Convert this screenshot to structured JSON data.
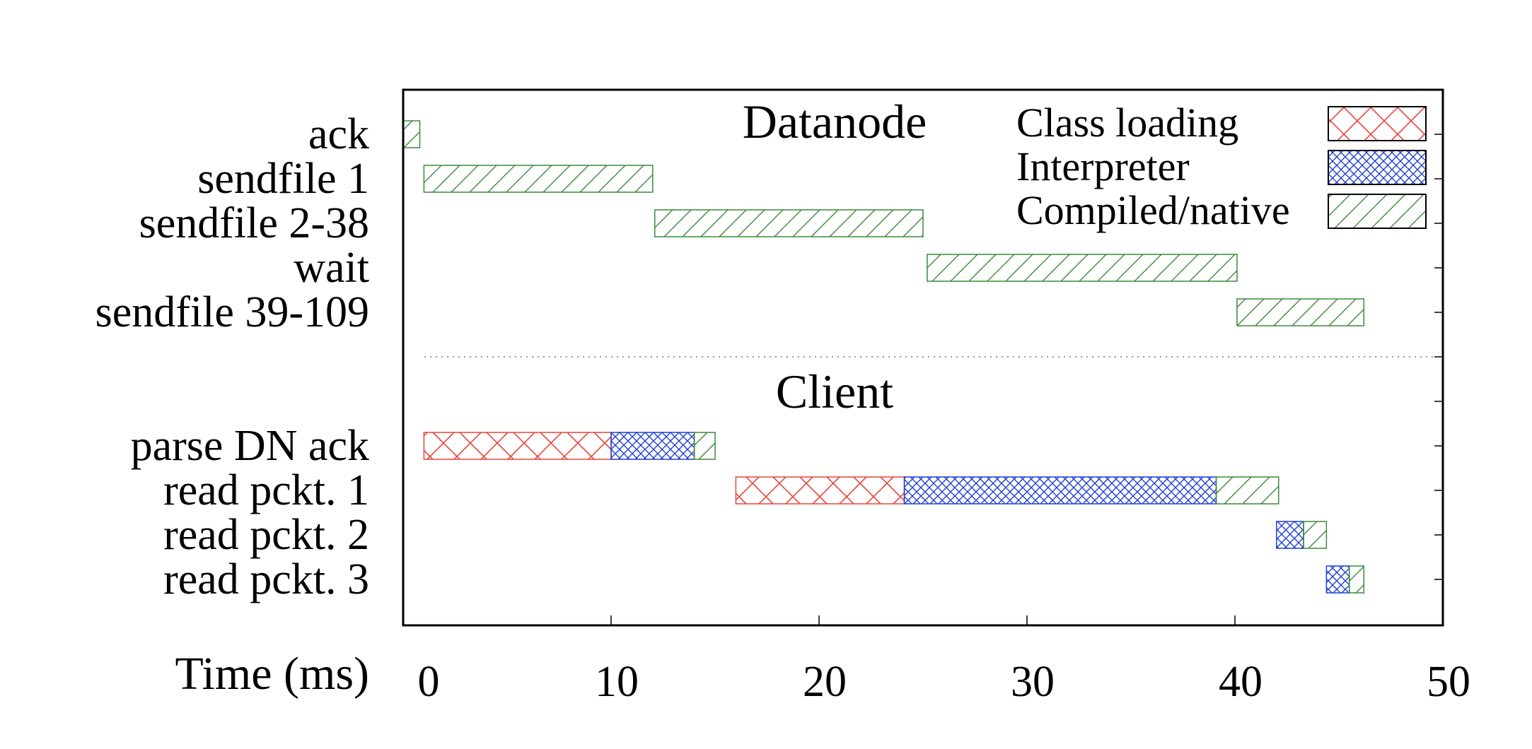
{
  "chart_data": {
    "type": "bar",
    "subtype": "gantt-timeline",
    "title": "",
    "xlabel": "Time (ms)",
    "ylabel": "",
    "xlim": [
      0,
      50
    ],
    "x_ticks": [
      0,
      10,
      20,
      30,
      40,
      50
    ],
    "grid": false,
    "legend_placement": "top-right (inside)",
    "sections": [
      {
        "label": "Datanode",
        "rows": [
          "ack",
          "sendfile 1",
          "sendfile 2-38",
          "wait",
          "sendfile 39-109"
        ]
      },
      {
        "label": "Client",
        "rows": [
          "parse DN ack",
          "read pckt. 1",
          "read pckt. 2",
          "read pckt. 3"
        ]
      }
    ],
    "rows": [
      "ack",
      "sendfile 1",
      "sendfile 2-38",
      "wait",
      "sendfile 39-109",
      "",
      "",
      "parse DN ack",
      "read pckt. 1",
      "read pckt. 2",
      "read pckt. 3"
    ],
    "series": [
      {
        "name": "Class loading",
        "color": "#e8453c",
        "pattern": "cross-hatch-sparse"
      },
      {
        "name": "Interpreter",
        "color": "#1f3fd6",
        "pattern": "cross-hatch-dense"
      },
      {
        "name": "Compiled/native",
        "color": "#3a8a3a",
        "pattern": "diagonal"
      }
    ],
    "segments": [
      {
        "row": "ack",
        "series": "Compiled/native",
        "start": -0.3,
        "end": 0.8
      },
      {
        "row": "sendfile 1",
        "series": "Compiled/native",
        "start": 1.0,
        "end": 12.0
      },
      {
        "row": "sendfile 2-38",
        "series": "Compiled/native",
        "start": 12.1,
        "end": 25.0
      },
      {
        "row": "wait",
        "series": "Compiled/native",
        "start": 25.2,
        "end": 40.1
      },
      {
        "row": "sendfile 39-109",
        "series": "Compiled/native",
        "start": 40.1,
        "end": 46.2
      },
      {
        "row": "parse DN ack",
        "series": "Class loading",
        "start": 1.0,
        "end": 10.0
      },
      {
        "row": "parse DN ack",
        "series": "Interpreter",
        "start": 10.0,
        "end": 14.0
      },
      {
        "row": "parse DN ack",
        "series": "Compiled/native",
        "start": 14.0,
        "end": 15.0
      },
      {
        "row": "read pckt. 1",
        "series": "Class loading",
        "start": 16.0,
        "end": 24.1
      },
      {
        "row": "read pckt. 1",
        "series": "Interpreter",
        "start": 24.1,
        "end": 39.1
      },
      {
        "row": "read pckt. 1",
        "series": "Compiled/native",
        "start": 39.1,
        "end": 42.1
      },
      {
        "row": "read pckt. 2",
        "series": "Interpreter",
        "start": 42.0,
        "end": 43.3
      },
      {
        "row": "read pckt. 2",
        "series": "Compiled/native",
        "start": 43.3,
        "end": 44.4
      },
      {
        "row": "read pckt. 3",
        "series": "Interpreter",
        "start": 44.4,
        "end": 45.5
      },
      {
        "row": "read pckt. 3",
        "series": "Compiled/native",
        "start": 45.5,
        "end": 46.2
      }
    ],
    "separator_after_row": "sendfile 39-109"
  }
}
